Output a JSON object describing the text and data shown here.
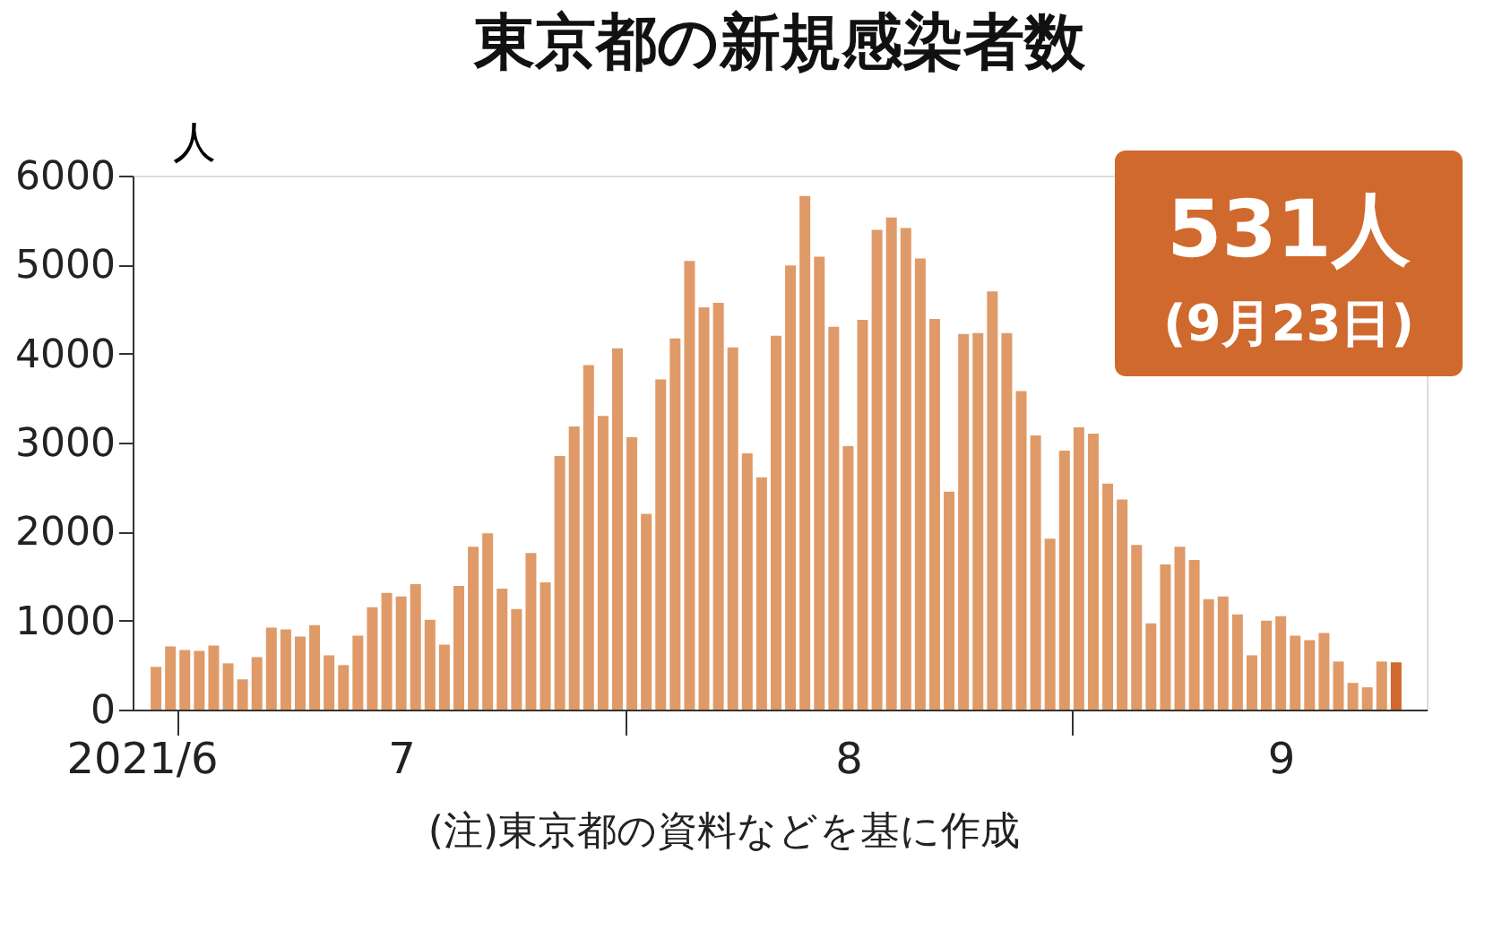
{
  "chart_data": {
    "type": "bar",
    "title": "東京都の新規感染者数",
    "ylabel": "人",
    "x": [
      "2021-06-29",
      "2021-06-30",
      "2021-07-01",
      "2021-07-02",
      "2021-07-03",
      "2021-07-04",
      "2021-07-05",
      "2021-07-06",
      "2021-07-07",
      "2021-07-08",
      "2021-07-09",
      "2021-07-10",
      "2021-07-11",
      "2021-07-12",
      "2021-07-13",
      "2021-07-14",
      "2021-07-15",
      "2021-07-16",
      "2021-07-17",
      "2021-07-18",
      "2021-07-19",
      "2021-07-20",
      "2021-07-21",
      "2021-07-22",
      "2021-07-23",
      "2021-07-24",
      "2021-07-25",
      "2021-07-26",
      "2021-07-27",
      "2021-07-28",
      "2021-07-29",
      "2021-07-30",
      "2021-07-31",
      "2021-08-01",
      "2021-08-02",
      "2021-08-03",
      "2021-08-04",
      "2021-08-05",
      "2021-08-06",
      "2021-08-07",
      "2021-08-08",
      "2021-08-09",
      "2021-08-10",
      "2021-08-11",
      "2021-08-12",
      "2021-08-13",
      "2021-08-14",
      "2021-08-15",
      "2021-08-16",
      "2021-08-17",
      "2021-08-18",
      "2021-08-19",
      "2021-08-20",
      "2021-08-21",
      "2021-08-22",
      "2021-08-23",
      "2021-08-24",
      "2021-08-25",
      "2021-08-26",
      "2021-08-27",
      "2021-08-28",
      "2021-08-29",
      "2021-08-30",
      "2021-08-31",
      "2021-09-01",
      "2021-09-02",
      "2021-09-03",
      "2021-09-04",
      "2021-09-05",
      "2021-09-06",
      "2021-09-07",
      "2021-09-08",
      "2021-09-09",
      "2021-09-10",
      "2021-09-11",
      "2021-09-12",
      "2021-09-13",
      "2021-09-14",
      "2021-09-15",
      "2021-09-16",
      "2021-09-17",
      "2021-09-18",
      "2021-09-19",
      "2021-09-20",
      "2021-09-21",
      "2021-09-22",
      "2021-09-23"
    ],
    "values": [
      480,
      710,
      670,
      660,
      720,
      520,
      340,
      590,
      920,
      900,
      820,
      950,
      610,
      500,
      830,
      1150,
      1310,
      1270,
      1410,
      1010,
      730,
      1390,
      1830,
      1980,
      1360,
      1130,
      1760,
      1430,
      2850,
      3180,
      3870,
      3300,
      4060,
      3060,
      2200,
      3710,
      4170,
      5040,
      4520,
      4570,
      4070,
      2880,
      2610,
      4200,
      4990,
      5770,
      5090,
      4300,
      2960,
      4380,
      5390,
      5530,
      5410,
      5070,
      4390,
      2450,
      4220,
      4230,
      4700,
      4230,
      3580,
      3080,
      1920,
      2910,
      3170,
      3100,
      2540,
      2360,
      1850,
      970,
      1630,
      1830,
      1680,
      1240,
      1270,
      1070,
      610,
      1000,
      1050,
      830,
      780,
      860,
      540,
      300,
      250,
      540,
      531
    ],
    "colors": [
      "#df9a68",
      "#df9a68",
      "#df9a68",
      "#df9a68",
      "#df9a68",
      "#df9a68",
      "#df9a68",
      "#df9a68",
      "#df9a68",
      "#df9a68",
      "#df9a68",
      "#df9a68",
      "#df9a68",
      "#df9a68",
      "#df9a68",
      "#df9a68",
      "#df9a68",
      "#df9a68",
      "#df9a68",
      "#df9a68",
      "#df9a68",
      "#df9a68",
      "#df9a68",
      "#df9a68",
      "#df9a68",
      "#df9a68",
      "#df9a68",
      "#df9a68",
      "#df9a68",
      "#df9a68",
      "#df9a68",
      "#df9a68",
      "#df9a68",
      "#df9a68",
      "#df9a68",
      "#df9a68",
      "#df9a68",
      "#df9a68",
      "#df9a68",
      "#df9a68",
      "#df9a68",
      "#df9a68",
      "#df9a68",
      "#df9a68",
      "#df9a68",
      "#df9a68",
      "#df9a68",
      "#df9a68",
      "#df9a68",
      "#df9a68",
      "#df9a68",
      "#df9a68",
      "#df9a68",
      "#df9a68",
      "#df9a68",
      "#df9a68",
      "#df9a68",
      "#df9a68",
      "#df9a68",
      "#df9a68",
      "#df9a68",
      "#df9a68",
      "#df9a68",
      "#df9a68",
      "#df9a68",
      "#df9a68",
      "#df9a68",
      "#df9a68",
      "#df9a68",
      "#df9a68",
      "#df9a68",
      "#df9a68",
      "#df9a68",
      "#df9a68",
      "#df9a68",
      "#df9a68",
      "#df9a68",
      "#df9a68",
      "#df9a68",
      "#df9a68",
      "#df9a68",
      "#df9a68",
      "#df9a68",
      "#df9a68",
      "#df9a68",
      "#df9a68",
      "#d0692d"
    ],
    "xlim": [
      "2021-06-28",
      "2021-09-24T12:00"
    ],
    "xticks": [
      {
        "value": "2021-06-28",
        "label": "2021/6"
      },
      {
        "value": "2021-06-30T12:00",
        "label": null
      },
      {
        "value": "2021-07-16",
        "label": "7"
      },
      {
        "value": "2021-07-31T12:00",
        "label": null
      },
      {
        "value": "2021-08-16",
        "label": "8"
      },
      {
        "value": "2021-08-31T12:00",
        "label": null
      },
      {
        "value": "2021-09-15",
        "label": "9"
      }
    ],
    "ylim": [
      0,
      6000
    ],
    "yticks": [
      0,
      1000,
      2000,
      3000,
      4000,
      5000,
      6000
    ],
    "grid": false,
    "annotations": [
      "531人",
      "(9月23日)",
      "(注)東京都の資料などを基に作成"
    ]
  }
}
